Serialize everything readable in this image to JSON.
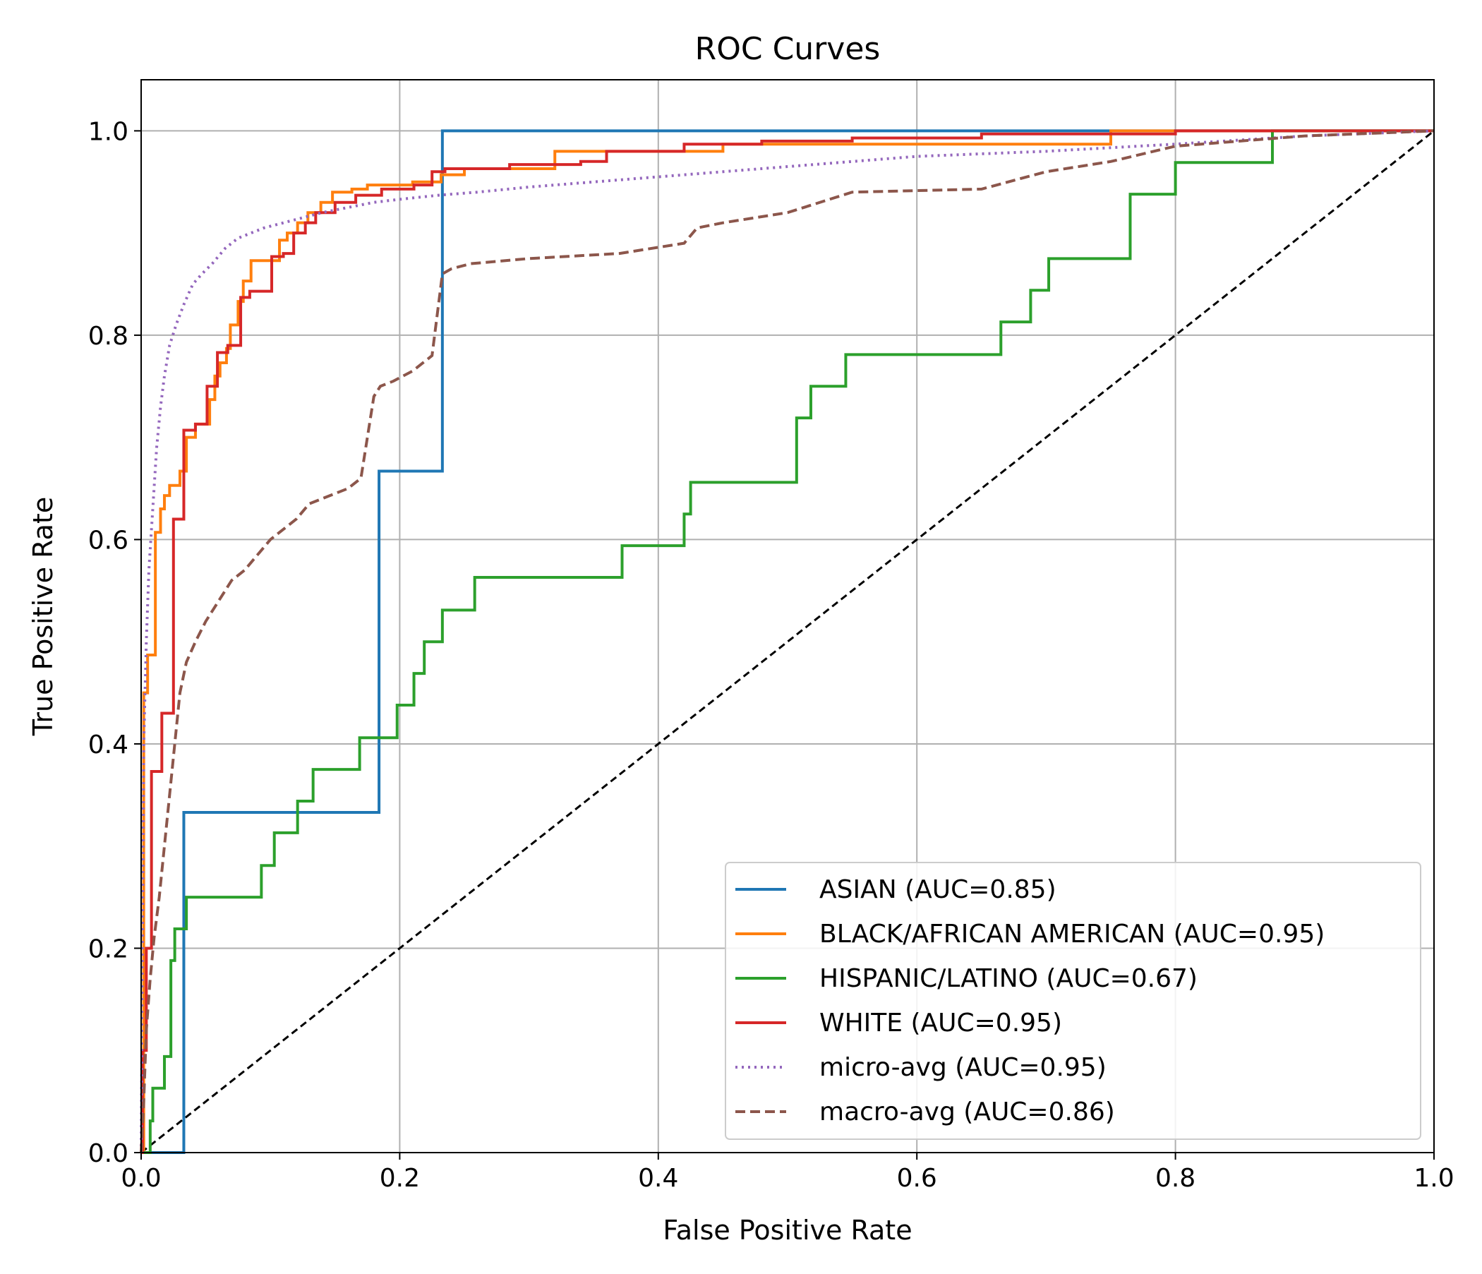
{
  "chart_data": {
    "type": "line",
    "title": "ROC Curves",
    "xlabel": "False Positive Rate",
    "ylabel": "True Positive Rate",
    "xlim": [
      0.0,
      1.0
    ],
    "ylim": [
      0.0,
      1.05
    ],
    "xticks": [
      0.0,
      0.2,
      0.4,
      0.6,
      0.8,
      1.0
    ],
    "yticks": [
      0.0,
      0.2,
      0.4,
      0.6,
      0.8,
      1.0
    ],
    "xtick_labels": [
      "0.0",
      "0.2",
      "0.4",
      "0.6",
      "0.8",
      "1.0"
    ],
    "ytick_labels": [
      "0.0",
      "0.2",
      "0.4",
      "0.6",
      "0.8",
      "1.0"
    ],
    "grid": true,
    "legend_position": "lower-right",
    "series": [
      {
        "name": "ASIAN (AUC=0.85)",
        "color": "#1f77b4",
        "style": "solid",
        "x": [
          0.0,
          0.033,
          0.033,
          0.184,
          0.184,
          0.233,
          0.233,
          1.0
        ],
        "y": [
          0.0,
          0.0,
          0.333,
          0.333,
          0.667,
          0.667,
          1.0,
          1.0
        ]
      },
      {
        "name": "BLACK/AFRICAN AMERICAN (AUC=0.95)",
        "color": "#ff7f0e",
        "style": "solid",
        "x": [
          0.0,
          0.002,
          0.002,
          0.005,
          0.005,
          0.011,
          0.011,
          0.015,
          0.015,
          0.018,
          0.018,
          0.022,
          0.022,
          0.03,
          0.03,
          0.035,
          0.035,
          0.042,
          0.042,
          0.053,
          0.053,
          0.057,
          0.057,
          0.061,
          0.061,
          0.066,
          0.066,
          0.069,
          0.069,
          0.075,
          0.075,
          0.079,
          0.079,
          0.085,
          0.085,
          0.107,
          0.107,
          0.113,
          0.113,
          0.121,
          0.121,
          0.129,
          0.129,
          0.139,
          0.139,
          0.148,
          0.148,
          0.163,
          0.163,
          0.175,
          0.175,
          0.21,
          0.21,
          0.232,
          0.232,
          0.25,
          0.25,
          0.32,
          0.32,
          0.45,
          0.45,
          0.75,
          0.75,
          1.0
        ],
        "y": [
          0.0,
          0.0,
          0.45,
          0.45,
          0.487,
          0.487,
          0.607,
          0.607,
          0.63,
          0.63,
          0.643,
          0.643,
          0.653,
          0.653,
          0.667,
          0.667,
          0.7,
          0.7,
          0.713,
          0.713,
          0.737,
          0.737,
          0.76,
          0.76,
          0.773,
          0.773,
          0.787,
          0.787,
          0.81,
          0.81,
          0.833,
          0.833,
          0.853,
          0.853,
          0.873,
          0.873,
          0.893,
          0.893,
          0.9,
          0.9,
          0.91,
          0.91,
          0.92,
          0.92,
          0.93,
          0.93,
          0.94,
          0.94,
          0.943,
          0.943,
          0.947,
          0.947,
          0.95,
          0.95,
          0.957,
          0.957,
          0.963,
          0.963,
          0.98,
          0.98,
          0.987,
          0.987,
          1.0,
          1.0
        ]
      },
      {
        "name": "HISPANIC/LATINO (AUC=0.67)",
        "color": "#2ca02c",
        "style": "solid",
        "x": [
          0.0,
          0.007,
          0.007,
          0.009,
          0.009,
          0.018,
          0.018,
          0.023,
          0.023,
          0.026,
          0.026,
          0.035,
          0.035,
          0.093,
          0.093,
          0.103,
          0.103,
          0.121,
          0.121,
          0.133,
          0.133,
          0.169,
          0.169,
          0.198,
          0.198,
          0.211,
          0.211,
          0.219,
          0.219,
          0.233,
          0.233,
          0.258,
          0.258,
          0.372,
          0.372,
          0.42,
          0.42,
          0.425,
          0.425,
          0.507,
          0.507,
          0.518,
          0.518,
          0.545,
          0.545,
          0.665,
          0.665,
          0.688,
          0.688,
          0.702,
          0.702,
          0.765,
          0.765,
          0.8,
          0.8,
          0.875,
          0.875,
          1.0
        ],
        "y": [
          0.0,
          0.0,
          0.031,
          0.031,
          0.063,
          0.063,
          0.094,
          0.094,
          0.188,
          0.188,
          0.219,
          0.219,
          0.25,
          0.25,
          0.281,
          0.281,
          0.313,
          0.313,
          0.344,
          0.344,
          0.375,
          0.375,
          0.406,
          0.406,
          0.438,
          0.438,
          0.469,
          0.469,
          0.5,
          0.5,
          0.531,
          0.531,
          0.563,
          0.563,
          0.594,
          0.594,
          0.625,
          0.625,
          0.656,
          0.656,
          0.719,
          0.719,
          0.75,
          0.75,
          0.781,
          0.781,
          0.813,
          0.813,
          0.844,
          0.844,
          0.875,
          0.875,
          0.938,
          0.938,
          0.969,
          0.969,
          1.0,
          1.0
        ]
      },
      {
        "name": "WHITE (AUC=0.95)",
        "color": "#d62728",
        "style": "solid",
        "x": [
          0.0,
          0.001,
          0.001,
          0.004,
          0.004,
          0.008,
          0.008,
          0.016,
          0.016,
          0.025,
          0.025,
          0.033,
          0.033,
          0.042,
          0.042,
          0.051,
          0.051,
          0.059,
          0.059,
          0.067,
          0.067,
          0.077,
          0.077,
          0.084,
          0.084,
          0.101,
          0.101,
          0.11,
          0.11,
          0.118,
          0.118,
          0.127,
          0.127,
          0.135,
          0.135,
          0.15,
          0.15,
          0.166,
          0.166,
          0.186,
          0.186,
          0.211,
          0.211,
          0.225,
          0.225,
          0.235,
          0.235,
          0.285,
          0.285,
          0.34,
          0.34,
          0.36,
          0.36,
          0.42,
          0.42,
          0.48,
          0.48,
          0.55,
          0.55,
          0.65,
          0.65,
          0.8,
          0.8,
          1.0
        ],
        "y": [
          0.0,
          0.0,
          0.1,
          0.1,
          0.2,
          0.2,
          0.373,
          0.373,
          0.43,
          0.43,
          0.62,
          0.62,
          0.707,
          0.707,
          0.713,
          0.713,
          0.75,
          0.75,
          0.783,
          0.783,
          0.79,
          0.79,
          0.837,
          0.837,
          0.843,
          0.843,
          0.877,
          0.877,
          0.88,
          0.88,
          0.9,
          0.9,
          0.91,
          0.91,
          0.92,
          0.92,
          0.93,
          0.93,
          0.937,
          0.937,
          0.943,
          0.943,
          0.947,
          0.947,
          0.96,
          0.96,
          0.963,
          0.963,
          0.967,
          0.967,
          0.97,
          0.97,
          0.98,
          0.98,
          0.987,
          0.987,
          0.99,
          0.99,
          0.993,
          0.993,
          0.997,
          0.997,
          1.0,
          1.0
        ]
      },
      {
        "name": "micro-avg (AUC=0.95)",
        "color": "#9467bd",
        "style": "dotted",
        "x": [
          0.0,
          0.001,
          0.002,
          0.004,
          0.006,
          0.008,
          0.01,
          0.012,
          0.015,
          0.018,
          0.022,
          0.027,
          0.033,
          0.04,
          0.047,
          0.055,
          0.065,
          0.075,
          0.085,
          0.095,
          0.11,
          0.125,
          0.14,
          0.16,
          0.18,
          0.2,
          0.23,
          0.26,
          0.3,
          0.35,
          0.4,
          0.45,
          0.5,
          0.55,
          0.6,
          0.7,
          0.8,
          0.9,
          1.0
        ],
        "y": [
          0.0,
          0.2,
          0.4,
          0.5,
          0.57,
          0.61,
          0.65,
          0.69,
          0.73,
          0.76,
          0.79,
          0.81,
          0.83,
          0.85,
          0.86,
          0.87,
          0.885,
          0.895,
          0.9,
          0.905,
          0.91,
          0.915,
          0.92,
          0.925,
          0.93,
          0.933,
          0.937,
          0.94,
          0.945,
          0.95,
          0.955,
          0.96,
          0.965,
          0.97,
          0.975,
          0.98,
          0.987,
          0.995,
          1.0
        ]
      },
      {
        "name": "macro-avg (AUC=0.86)",
        "color": "#8c564b",
        "style": "dashed",
        "x": [
          0.0,
          0.002,
          0.004,
          0.007,
          0.01,
          0.014,
          0.018,
          0.022,
          0.026,
          0.03,
          0.035,
          0.042,
          0.05,
          0.06,
          0.07,
          0.08,
          0.09,
          0.1,
          0.11,
          0.12,
          0.13,
          0.14,
          0.15,
          0.16,
          0.17,
          0.175,
          0.18,
          0.185,
          0.195,
          0.21,
          0.225,
          0.233,
          0.24,
          0.255,
          0.3,
          0.37,
          0.42,
          0.43,
          0.45,
          0.5,
          0.55,
          0.65,
          0.7,
          0.75,
          0.8,
          0.85,
          0.9,
          1.0
        ],
        "y": [
          0.0,
          0.05,
          0.12,
          0.17,
          0.21,
          0.25,
          0.3,
          0.35,
          0.4,
          0.45,
          0.48,
          0.5,
          0.52,
          0.54,
          0.56,
          0.57,
          0.585,
          0.6,
          0.61,
          0.62,
          0.635,
          0.64,
          0.645,
          0.65,
          0.66,
          0.7,
          0.74,
          0.75,
          0.755,
          0.765,
          0.78,
          0.86,
          0.865,
          0.87,
          0.875,
          0.88,
          0.89,
          0.905,
          0.91,
          0.92,
          0.94,
          0.943,
          0.96,
          0.97,
          0.985,
          0.99,
          0.995,
          1.0
        ]
      }
    ],
    "reference_line": {
      "color": "#000000",
      "style": "dashed",
      "x": [
        0.0,
        1.0
      ],
      "y": [
        0.0,
        1.0
      ]
    }
  }
}
